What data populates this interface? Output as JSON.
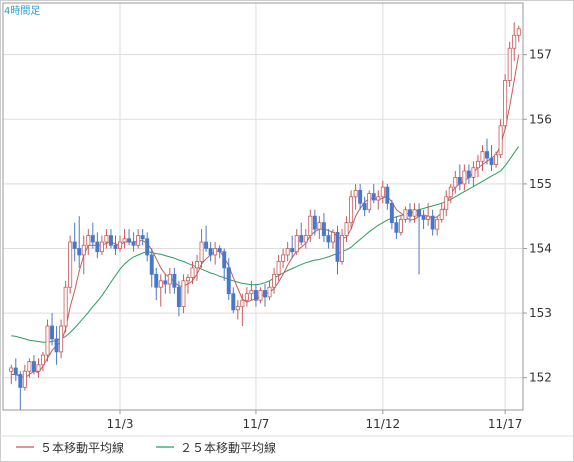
{
  "chart_data": {
    "type": "candlestick",
    "title": "4時間足",
    "xlabel": "",
    "ylabel": "",
    "ylim": [
      151.5,
      157.8
    ],
    "y_ticks": [
      152,
      153,
      154,
      155,
      156,
      157
    ],
    "x_ticks": [
      {
        "label": "11/3",
        "index": 24
      },
      {
        "label": "11/7",
        "index": 54
      },
      {
        "label": "11/12",
        "index": 82
      },
      {
        "label": "11/17",
        "index": 109
      }
    ],
    "grid": true,
    "legend": {
      "placement": "bottom-left",
      "items": [
        {
          "label": "５本移動平均線",
          "color": "#c85a5a"
        },
        {
          "label": "２５本移動平均線",
          "color": "#2e9c5e"
        }
      ]
    },
    "colors": {
      "up": "#c85a5a",
      "down": "#4a78c8",
      "ma5": "#c85a5a",
      "ma25": "#2e9c5e",
      "border": "#999999",
      "grid": "#dddddd"
    },
    "candles": [
      [
        152.1,
        152.2,
        151.9,
        152.15
      ],
      [
        152.15,
        152.3,
        151.95,
        152.05
      ],
      [
        152.05,
        152.1,
        151.5,
        151.85
      ],
      [
        151.85,
        152.2,
        151.8,
        152.1
      ],
      [
        152.1,
        152.3,
        152.0,
        152.25
      ],
      [
        152.25,
        152.35,
        152.05,
        152.1
      ],
      [
        152.1,
        152.3,
        152.0,
        152.2
      ],
      [
        152.2,
        152.4,
        152.1,
        152.35
      ],
      [
        152.35,
        152.9,
        152.25,
        152.8
      ],
      [
        152.8,
        153.0,
        152.5,
        152.6
      ],
      [
        152.6,
        152.8,
        152.2,
        152.4
      ],
      [
        152.4,
        152.9,
        152.3,
        152.8
      ],
      [
        152.8,
        153.5,
        152.7,
        153.4
      ],
      [
        153.4,
        154.2,
        153.3,
        154.1
      ],
      [
        154.1,
        154.4,
        153.8,
        154.0
      ],
      [
        154.0,
        154.5,
        153.7,
        153.9
      ],
      [
        153.9,
        154.2,
        153.6,
        154.05
      ],
      [
        154.05,
        154.3,
        153.9,
        154.2
      ],
      [
        154.2,
        154.4,
        154.0,
        154.1
      ],
      [
        154.1,
        154.25,
        153.85,
        153.95
      ],
      [
        153.95,
        154.2,
        153.9,
        154.1
      ],
      [
        154.1,
        154.3,
        154.0,
        154.2
      ],
      [
        154.2,
        154.3,
        154.0,
        154.05
      ],
      [
        154.05,
        154.2,
        153.9,
        154.0
      ],
      [
        154.0,
        154.2,
        153.95,
        154.1
      ],
      [
        154.1,
        154.3,
        154.0,
        154.15
      ],
      [
        154.15,
        154.3,
        154.05,
        154.1
      ],
      [
        154.1,
        154.25,
        153.95,
        154.05
      ],
      [
        154.05,
        154.3,
        154.0,
        154.2
      ],
      [
        154.2,
        154.3,
        154.05,
        154.15
      ],
      [
        154.15,
        154.25,
        153.8,
        153.9
      ],
      [
        153.9,
        154.0,
        153.4,
        153.6
      ],
      [
        153.6,
        153.7,
        153.2,
        153.4
      ],
      [
        153.4,
        153.6,
        153.1,
        153.5
      ],
      [
        153.5,
        153.6,
        153.3,
        153.45
      ],
      [
        153.45,
        153.7,
        153.3,
        153.6
      ],
      [
        153.6,
        153.7,
        153.3,
        153.4
      ],
      [
        153.4,
        153.5,
        152.95,
        153.1
      ],
      [
        153.1,
        153.6,
        153.0,
        153.5
      ],
      [
        153.5,
        153.6,
        153.3,
        153.55
      ],
      [
        153.55,
        153.8,
        153.45,
        153.7
      ],
      [
        153.7,
        153.9,
        153.5,
        153.8
      ],
      [
        153.8,
        154.3,
        153.7,
        154.1
      ],
      [
        154.1,
        154.35,
        153.95,
        154.0
      ],
      [
        154.0,
        154.1,
        153.8,
        153.9
      ],
      [
        153.9,
        154.1,
        153.75,
        154.0
      ],
      [
        154.0,
        154.05,
        153.85,
        153.95
      ],
      [
        153.95,
        154.0,
        153.5,
        153.7
      ],
      [
        153.7,
        153.85,
        153.2,
        153.3
      ],
      [
        153.3,
        153.4,
        153.0,
        153.05
      ],
      [
        153.05,
        153.2,
        152.9,
        153.1
      ],
      [
        153.1,
        153.3,
        152.8,
        153.2
      ],
      [
        153.2,
        153.4,
        153.1,
        153.3
      ],
      [
        153.3,
        153.5,
        153.2,
        153.35
      ],
      [
        153.35,
        153.45,
        153.1,
        153.2
      ],
      [
        153.2,
        153.4,
        153.15,
        153.35
      ],
      [
        153.35,
        153.45,
        153.1,
        153.25
      ],
      [
        153.25,
        153.5,
        153.2,
        153.4
      ],
      [
        153.4,
        153.7,
        153.3,
        153.6
      ],
      [
        153.6,
        153.9,
        153.5,
        153.8
      ],
      [
        153.8,
        154.0,
        153.7,
        153.9
      ],
      [
        153.9,
        154.1,
        153.8,
        154.0
      ],
      [
        154.0,
        154.2,
        153.85,
        153.95
      ],
      [
        153.95,
        154.3,
        153.9,
        154.2
      ],
      [
        154.2,
        154.4,
        154.05,
        154.1
      ],
      [
        154.1,
        154.3,
        154.0,
        154.2
      ],
      [
        154.2,
        154.6,
        154.1,
        154.5
      ],
      [
        154.5,
        154.6,
        154.2,
        154.3
      ],
      [
        154.3,
        154.5,
        154.15,
        154.4
      ],
      [
        154.4,
        154.55,
        154.1,
        154.2
      ],
      [
        154.2,
        154.3,
        154.0,
        154.1
      ],
      [
        154.1,
        154.3,
        154.0,
        154.25
      ],
      [
        154.25,
        154.35,
        153.6,
        153.8
      ],
      [
        153.8,
        154.3,
        153.75,
        154.2
      ],
      [
        154.2,
        154.5,
        154.1,
        154.4
      ],
      [
        154.4,
        154.9,
        154.3,
        154.8
      ],
      [
        154.8,
        155.0,
        154.6,
        154.9
      ],
      [
        154.9,
        155.0,
        154.6,
        154.7
      ],
      [
        154.7,
        154.8,
        154.5,
        154.6
      ],
      [
        154.6,
        154.9,
        154.55,
        154.85
      ],
      [
        154.85,
        155.0,
        154.7,
        154.75
      ],
      [
        154.75,
        154.9,
        154.6,
        154.8
      ],
      [
        154.8,
        155.05,
        154.7,
        154.95
      ],
      [
        154.95,
        155.0,
        154.6,
        154.7
      ],
      [
        154.7,
        154.75,
        154.3,
        154.4
      ],
      [
        154.4,
        154.5,
        154.15,
        154.25
      ],
      [
        154.25,
        154.5,
        154.2,
        154.45
      ],
      [
        154.45,
        154.65,
        154.4,
        154.6
      ],
      [
        154.6,
        154.7,
        154.4,
        154.5
      ],
      [
        154.5,
        154.7,
        154.4,
        154.6
      ],
      [
        154.6,
        154.7,
        153.6,
        154.5
      ],
      [
        154.5,
        154.6,
        154.3,
        154.45
      ],
      [
        154.45,
        154.7,
        154.35,
        154.5
      ],
      [
        154.5,
        154.6,
        154.2,
        154.3
      ],
      [
        154.3,
        154.5,
        154.2,
        154.45
      ],
      [
        154.45,
        154.7,
        154.4,
        154.6
      ],
      [
        154.6,
        154.9,
        154.5,
        154.8
      ],
      [
        154.8,
        155.0,
        154.7,
        154.95
      ],
      [
        154.95,
        155.2,
        154.85,
        155.1
      ],
      [
        155.1,
        155.3,
        154.9,
        155.0
      ],
      [
        155.0,
        155.3,
        154.9,
        155.2
      ],
      [
        155.2,
        155.3,
        155.0,
        155.1
      ],
      [
        155.1,
        155.35,
        154.95,
        155.25
      ],
      [
        155.25,
        155.45,
        155.1,
        155.35
      ],
      [
        155.35,
        155.6,
        155.2,
        155.5
      ],
      [
        155.5,
        155.7,
        155.3,
        155.4
      ],
      [
        155.4,
        155.6,
        155.2,
        155.3
      ],
      [
        155.3,
        155.5,
        155.25,
        155.45
      ],
      [
        155.45,
        156.0,
        155.4,
        155.9
      ],
      [
        155.9,
        156.7,
        155.85,
        156.6
      ],
      [
        156.6,
        157.2,
        156.5,
        157.1
      ],
      [
        157.1,
        157.5,
        156.9,
        157.3
      ],
      [
        157.3,
        157.45,
        157.2,
        157.4
      ]
    ],
    "ma5": [
      152.05,
      152.05,
      152.02,
      152.0,
      152.05,
      152.1,
      152.08,
      152.18,
      152.3,
      152.42,
      152.5,
      152.55,
      152.75,
      153.1,
      153.35,
      153.65,
      153.9,
      154.05,
      154.05,
      154.05,
      154.05,
      154.08,
      154.1,
      154.07,
      154.05,
      154.1,
      154.1,
      154.1,
      154.12,
      154.12,
      154.08,
      153.98,
      153.84,
      153.7,
      153.6,
      153.55,
      153.48,
      153.42,
      153.42,
      153.45,
      153.5,
      153.6,
      153.76,
      153.84,
      153.9,
      153.96,
      153.96,
      153.86,
      153.73,
      153.55,
      153.38,
      153.22,
      153.17,
      153.2,
      153.22,
      153.26,
      153.3,
      153.32,
      153.38,
      153.48,
      153.6,
      153.74,
      153.86,
      153.96,
      154.02,
      154.08,
      154.2,
      154.26,
      154.3,
      154.3,
      154.28,
      154.25,
      154.18,
      154.15,
      154.18,
      154.3,
      154.5,
      154.62,
      154.72,
      154.77,
      154.78,
      154.75,
      154.78,
      154.81,
      154.72,
      154.6,
      154.55,
      154.49,
      154.44,
      154.45,
      154.5,
      154.52,
      154.5,
      154.47,
      154.49,
      154.55,
      154.68,
      154.85,
      154.95,
      155.0,
      155.05,
      155.1,
      155.18,
      155.25,
      155.3,
      155.35,
      155.4,
      155.45,
      155.6,
      155.85,
      156.2,
      156.6,
      157.0
    ],
    "ma25": [
      152.65,
      152.64,
      152.62,
      152.6,
      152.58,
      152.57,
      152.56,
      152.55,
      152.55,
      152.56,
      152.58,
      152.6,
      152.64,
      152.7,
      152.77,
      152.85,
      152.93,
      153.01,
      153.1,
      153.18,
      153.27,
      153.37,
      153.48,
      153.58,
      153.68,
      153.76,
      153.82,
      153.87,
      153.9,
      153.93,
      153.95,
      153.94,
      153.92,
      153.91,
      153.89,
      153.87,
      153.85,
      153.82,
      153.8,
      153.77,
      153.74,
      153.71,
      153.68,
      153.65,
      153.62,
      153.6,
      153.57,
      153.55,
      153.52,
      153.5,
      153.48,
      153.46,
      153.45,
      153.44,
      153.44,
      153.45,
      153.47,
      153.5,
      153.54,
      153.58,
      153.62,
      153.66,
      153.69,
      153.72,
      153.75,
      153.78,
      153.8,
      153.82,
      153.83,
      153.85,
      153.87,
      153.9,
      153.92,
      153.95,
      153.98,
      154.02,
      154.08,
      154.14,
      154.2,
      154.26,
      154.31,
      154.36,
      154.4,
      154.44,
      154.47,
      154.49,
      154.51,
      154.53,
      154.55,
      154.57,
      154.6,
      154.62,
      154.64,
      154.66,
      154.68,
      154.7,
      154.73,
      154.76,
      154.8,
      154.84,
      154.88,
      154.92,
      154.96,
      155.0,
      155.04,
      155.08,
      155.12,
      155.16,
      155.2,
      155.28,
      155.38,
      155.48,
      155.58
    ]
  }
}
